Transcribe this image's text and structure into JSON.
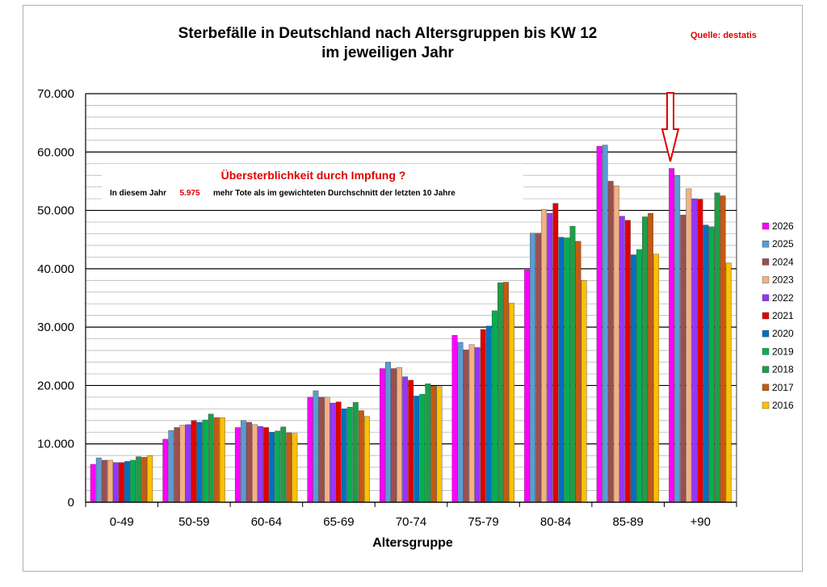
{
  "chart_data": {
    "type": "bar",
    "title": "Sterbefälle in Deutschland nach Altersgruppen bis KW 12",
    "subtitle": "im jeweiligen Jahr",
    "source": "Quelle: destatis",
    "xlabel": "Altersgruppe",
    "ylabel": "",
    "ylim": [
      0,
      70000
    ],
    "yticks": [
      "0",
      "10.000",
      "20.000",
      "30.000",
      "40.000",
      "50.000",
      "60.000",
      "70.000"
    ],
    "grid": true,
    "legend_position": "right",
    "categories": [
      "0-49",
      "50-59",
      "60-64",
      "65-69",
      "70-74",
      "75-79",
      "80-84",
      "85-89",
      "+90"
    ],
    "series": [
      {
        "name": "2026",
        "color": "#ff00ff",
        "values": [
          6500,
          10800,
          12800,
          18000,
          22900,
          28600,
          39800,
          61000,
          57200
        ]
      },
      {
        "name": "2025",
        "color": "#5b9bd5",
        "values": [
          7600,
          12300,
          14000,
          19100,
          24000,
          27400,
          46100,
          61200,
          56000
        ]
      },
      {
        "name": "2024",
        "color": "#9c4f4f",
        "values": [
          7200,
          12800,
          13700,
          18000,
          22900,
          26100,
          46100,
          55000,
          49200
        ]
      },
      {
        "name": "2023",
        "color": "#f4b183",
        "values": [
          7200,
          13200,
          13300,
          18000,
          23100,
          27000,
          50200,
          54200,
          53700
        ]
      },
      {
        "name": "2022",
        "color": "#9933ff",
        "values": [
          6800,
          13300,
          13000,
          17000,
          21500,
          26500,
          49500,
          49000,
          52000
        ]
      },
      {
        "name": "2021",
        "color": "#e00000",
        "values": [
          6800,
          14000,
          12800,
          17200,
          20900,
          29600,
          51200,
          48300,
          51900
        ]
      },
      {
        "name": "2020",
        "color": "#0070c0",
        "values": [
          7000,
          13700,
          12000,
          16000,
          18200,
          30200,
          45400,
          42400,
          47500
        ]
      },
      {
        "name": "2019",
        "color": "#00b050",
        "values": [
          7200,
          14100,
          12200,
          16300,
          18500,
          32800,
          45300,
          43300,
          47200
        ]
      },
      {
        "name": "2018",
        "color": "#1e9e47",
        "values": [
          7800,
          15100,
          12900,
          17100,
          20300,
          37600,
          47300,
          48900,
          53000
        ]
      },
      {
        "name": "2017",
        "color": "#c55a11",
        "values": [
          7700,
          14500,
          11900,
          15700,
          19900,
          37700,
          44700,
          49500,
          52500
        ]
      },
      {
        "name": "2016",
        "color": "#ffc000",
        "values": [
          8000,
          14500,
          11800,
          14700,
          19800,
          34100,
          38000,
          42500,
          41000
        ]
      }
    ],
    "annotation": {
      "headline": "Übersterblichkeit durch Impfung ?",
      "text_before": "In diesem Jahr",
      "value": "5.975",
      "text_after": "mehr Tote als im gewichteten Durchschnitt der letzten 10 Jahre"
    }
  }
}
